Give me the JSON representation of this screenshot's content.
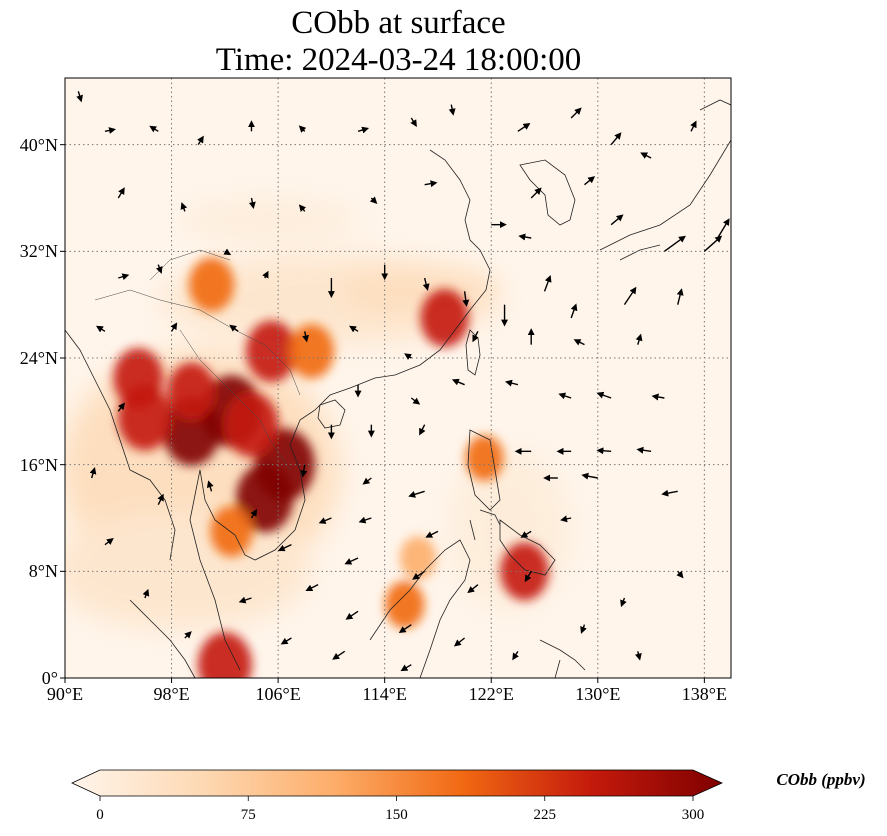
{
  "title": {
    "line1": "CObb at surface",
    "line2": "Time: 2024-03-24 18:00:00"
  },
  "map": {
    "lon_range": [
      90,
      140
    ],
    "lat_range": [
      0,
      45
    ],
    "lat_ticks": [
      {
        "value": 0,
        "label": "0°"
      },
      {
        "value": 8,
        "label": "8°N"
      },
      {
        "value": 16,
        "label": "16°N"
      },
      {
        "value": 24,
        "label": "24°N"
      },
      {
        "value": 32,
        "label": "32°N"
      },
      {
        "value": 40,
        "label": "40°N"
      }
    ],
    "lon_ticks": [
      {
        "value": 90,
        "label": "90°E"
      },
      {
        "value": 98,
        "label": "98°E"
      },
      {
        "value": 106,
        "label": "106°E"
      },
      {
        "value": 114,
        "label": "114°E"
      },
      {
        "value": 122,
        "label": "122°E"
      },
      {
        "value": 130,
        "label": "130°E"
      },
      {
        "value": 138,
        "label": "138°E"
      }
    ],
    "gridlines": "dotted",
    "background_color": "#fff5eb"
  },
  "colorbar": {
    "label": "CObb (ppbv)",
    "min": 0,
    "max": 300,
    "ticks": [
      "0",
      "75",
      "150",
      "225",
      "300"
    ],
    "colormap": "OrRd",
    "colors": [
      "#fff5eb",
      "#fdd9b4",
      "#fdae6b",
      "#f16913",
      "#c41a0c",
      "#7f0000"
    ]
  },
  "hotspots": [
    {
      "lon": 102.5,
      "lat": 20.0,
      "value": 300
    },
    {
      "lon": 106.5,
      "lat": 16.0,
      "value": 300
    },
    {
      "lon": 105.0,
      "lat": 13.5,
      "value": 280
    },
    {
      "lon": 99.5,
      "lat": 18.5,
      "value": 280
    },
    {
      "lon": 96.0,
      "lat": 19.5,
      "value": 260
    },
    {
      "lon": 104.0,
      "lat": 19.0,
      "value": 260
    },
    {
      "lon": 95.5,
      "lat": 22.5,
      "value": 230
    },
    {
      "lon": 105.5,
      "lat": 24.5,
      "value": 240
    },
    {
      "lon": 99.5,
      "lat": 21.5,
      "value": 220
    },
    {
      "lon": 108.5,
      "lat": 24.5,
      "value": 200
    },
    {
      "lon": 101.0,
      "lat": 29.5,
      "value": 200
    },
    {
      "lon": 118.5,
      "lat": 27.0,
      "value": 220
    },
    {
      "lon": 102.0,
      "lat": 1.0,
      "value": 260
    },
    {
      "lon": 121.5,
      "lat": 16.5,
      "value": 150
    },
    {
      "lon": 124.5,
      "lat": 8.0,
      "value": 220
    },
    {
      "lon": 115.5,
      "lat": 5.5,
      "value": 160
    },
    {
      "lon": 102.5,
      "lat": 11.0,
      "value": 180
    },
    {
      "lon": 116.5,
      "lat": 9.0,
      "value": 140
    }
  ],
  "winds": [
    {
      "lon": 91,
      "lat": 44,
      "u": 0.3,
      "v": -1
    },
    {
      "lon": 93,
      "lat": 41,
      "u": 1,
      "v": 0.2
    },
    {
      "lon": 97,
      "lat": 41,
      "u": -0.8,
      "v": 0.5
    },
    {
      "lon": 100,
      "lat": 40,
      "u": 0.5,
      "v": 0.8
    },
    {
      "lon": 104,
      "lat": 41,
      "u": 0,
      "v": 1
    },
    {
      "lon": 108,
      "lat": 41,
      "u": -0.5,
      "v": 0.5
    },
    {
      "lon": 112,
      "lat": 41,
      "u": 1,
      "v": 0.3
    },
    {
      "lon": 116,
      "lat": 42,
      "u": 0.5,
      "v": -0.8
    },
    {
      "lon": 119,
      "lat": 43,
      "u": 0.2,
      "v": -1
    },
    {
      "lon": 124,
      "lat": 41,
      "u": 1.2,
      "v": 0.8
    },
    {
      "lon": 128,
      "lat": 42,
      "u": 1,
      "v": 1
    },
    {
      "lon": 131,
      "lat": 40,
      "u": 1,
      "v": 1.2
    },
    {
      "lon": 134,
      "lat": 39,
      "u": -1,
      "v": 0.5
    },
    {
      "lon": 137,
      "lat": 41,
      "u": 0.5,
      "v": 1
    },
    {
      "lon": 94,
      "lat": 36,
      "u": 0.6,
      "v": 1
    },
    {
      "lon": 99,
      "lat": 35,
      "u": -0.3,
      "v": 0.8
    },
    {
      "lon": 104,
      "lat": 36,
      "u": 0.2,
      "v": -1
    },
    {
      "lon": 108,
      "lat": 35,
      "u": -0.5,
      "v": 0.6
    },
    {
      "lon": 113,
      "lat": 36,
      "u": 0.5,
      "v": -0.5
    },
    {
      "lon": 117,
      "lat": 37,
      "u": 1.2,
      "v": 0.2
    },
    {
      "lon": 125,
      "lat": 36,
      "u": 1,
      "v": 1
    },
    {
      "lon": 129,
      "lat": 37,
      "u": 1,
      "v": 0.8
    },
    {
      "lon": 122,
      "lat": 34,
      "u": 1.5,
      "v": 0
    },
    {
      "lon": 125,
      "lat": 33,
      "u": -1.2,
      "v": 0.2
    },
    {
      "lon": 131,
      "lat": 34,
      "u": 1.2,
      "v": 1
    },
    {
      "lon": 135,
      "lat": 32,
      "u": 2.2,
      "v": 1.6
    },
    {
      "lon": 138,
      "lat": 32,
      "u": 1.8,
      "v": 1.6
    },
    {
      "lon": 139,
      "lat": 33,
      "u": 1.2,
      "v": 2
    },
    {
      "lon": 94,
      "lat": 30,
      "u": 1,
      "v": 0.3
    },
    {
      "lon": 97,
      "lat": 31,
      "u": 0.3,
      "v": -0.8
    },
    {
      "lon": 102,
      "lat": 32,
      "u": 0.5,
      "v": -0.3
    },
    {
      "lon": 105,
      "lat": 30,
      "u": 0.3,
      "v": 0.6
    },
    {
      "lon": 110,
      "lat": 30,
      "u": 0,
      "v": -2
    },
    {
      "lon": 114,
      "lat": 31,
      "u": 0,
      "v": -1.5
    },
    {
      "lon": 117,
      "lat": 30,
      "u": 0.3,
      "v": -1.2
    },
    {
      "lon": 120,
      "lat": 29,
      "u": 0.2,
      "v": -1.5
    },
    {
      "lon": 123,
      "lat": 28,
      "u": 0,
      "v": -2.2
    },
    {
      "lon": 126,
      "lat": 29,
      "u": 0.6,
      "v": 1.6
    },
    {
      "lon": 128,
      "lat": 27,
      "u": 0.5,
      "v": 1.4
    },
    {
      "lon": 132,
      "lat": 28,
      "u": 1.2,
      "v": 1.8
    },
    {
      "lon": 136,
      "lat": 28,
      "u": 0.4,
      "v": 1.6
    },
    {
      "lon": 93,
      "lat": 26,
      "u": -0.8,
      "v": 0.5
    },
    {
      "lon": 98,
      "lat": 26,
      "u": 0.5,
      "v": 0.8
    },
    {
      "lon": 103,
      "lat": 26,
      "u": -0.8,
      "v": 0.6
    },
    {
      "lon": 108,
      "lat": 26,
      "u": 0.2,
      "v": -1
    },
    {
      "lon": 112,
      "lat": 26,
      "u": -0.8,
      "v": 0.5
    },
    {
      "lon": 116,
      "lat": 24,
      "u": -0.6,
      "v": 0.4
    },
    {
      "lon": 121,
      "lat": 26,
      "u": -0.5,
      "v": -1
    },
    {
      "lon": 125,
      "lat": 25,
      "u": 0,
      "v": 1.6
    },
    {
      "lon": 129,
      "lat": 25,
      "u": -1,
      "v": 0.5
    },
    {
      "lon": 133,
      "lat": 25,
      "u": 0.3,
      "v": 1
    },
    {
      "lon": 112,
      "lat": 22,
      "u": 0,
      "v": -1.2
    },
    {
      "lon": 116,
      "lat": 21,
      "u": 0.8,
      "v": -0.6
    },
    {
      "lon": 120,
      "lat": 22,
      "u": -1.2,
      "v": 0.5
    },
    {
      "lon": 124,
      "lat": 22,
      "u": -1.2,
      "v": 0.3
    },
    {
      "lon": 128,
      "lat": 21,
      "u": -1.2,
      "v": 0.4
    },
    {
      "lon": 131,
      "lat": 21,
      "u": -1.4,
      "v": 0.5
    },
    {
      "lon": 135,
      "lat": 21,
      "u": -1.2,
      "v": 0.2
    },
    {
      "lon": 113,
      "lat": 19,
      "u": 0,
      "v": -1.2
    },
    {
      "lon": 117,
      "lat": 19,
      "u": -0.5,
      "v": -1
    },
    {
      "lon": 125,
      "lat": 17,
      "u": -1.6,
      "v": 0
    },
    {
      "lon": 128,
      "lat": 17,
      "u": -1.4,
      "v": 0
    },
    {
      "lon": 131,
      "lat": 17,
      "u": -1.4,
      "v": 0.1
    },
    {
      "lon": 134,
      "lat": 17,
      "u": -1.4,
      "v": 0.2
    },
    {
      "lon": 113,
      "lat": 15,
      "u": -0.8,
      "v": -0.6
    },
    {
      "lon": 117,
      "lat": 14,
      "u": -1.6,
      "v": -0.5
    },
    {
      "lon": 127,
      "lat": 15,
      "u": -1.4,
      "v": 0
    },
    {
      "lon": 130,
      "lat": 15,
      "u": -1.6,
      "v": 0.3
    },
    {
      "lon": 136,
      "lat": 14,
      "u": -1.6,
      "v": -0.3
    },
    {
      "lon": 110,
      "lat": 12,
      "u": -1.2,
      "v": -0.5
    },
    {
      "lon": 113,
      "lat": 12,
      "u": -1.2,
      "v": -0.4
    },
    {
      "lon": 118,
      "lat": 11,
      "u": -1.2,
      "v": -0.6
    },
    {
      "lon": 125,
      "lat": 11,
      "u": -1,
      "v": -0.6
    },
    {
      "lon": 128,
      "lat": 12,
      "u": -1,
      "v": -0.2
    },
    {
      "lon": 107,
      "lat": 10,
      "u": -1.3,
      "v": -0.6
    },
    {
      "lon": 112,
      "lat": 9,
      "u": -1.3,
      "v": -0.6
    },
    {
      "lon": 117,
      "lat": 8,
      "u": -1.2,
      "v": -0.8
    },
    {
      "lon": 121,
      "lat": 7,
      "u": -1,
      "v": -0.8
    },
    {
      "lon": 125,
      "lat": 8,
      "u": -0.6,
      "v": -1
    },
    {
      "lon": 109,
      "lat": 7,
      "u": -1.2,
      "v": -0.6
    },
    {
      "lon": 112,
      "lat": 5,
      "u": -1.2,
      "v": -0.8
    },
    {
      "lon": 116,
      "lat": 4,
      "u": -1.2,
      "v": -0.8
    },
    {
      "lon": 120,
      "lat": 3,
      "u": -1,
      "v": -0.8
    },
    {
      "lon": 104,
      "lat": 6,
      "u": -1.2,
      "v": -0.4
    },
    {
      "lon": 107,
      "lat": 3,
      "u": -1,
      "v": -0.6
    },
    {
      "lon": 111,
      "lat": 2,
      "u": -1.2,
      "v": -0.8
    },
    {
      "lon": 116,
      "lat": 1,
      "u": -1,
      "v": -0.6
    },
    {
      "lon": 94,
      "lat": 20,
      "u": 0.6,
      "v": 0.8
    },
    {
      "lon": 92,
      "lat": 15,
      "u": 0.3,
      "v": 1
    },
    {
      "lon": 93,
      "lat": 10,
      "u": 0.8,
      "v": 0.6
    },
    {
      "lon": 96,
      "lat": 6,
      "u": 0.3,
      "v": 0.8
    },
    {
      "lon": 99,
      "lat": 3,
      "u": 0.6,
      "v": 0.6
    },
    {
      "lon": 97,
      "lat": 13,
      "u": 0.5,
      "v": 1
    },
    {
      "lon": 101,
      "lat": 14,
      "u": -0.3,
      "v": 1
    },
    {
      "lon": 104,
      "lat": 12,
      "u": 0.5,
      "v": 0.8
    },
    {
      "lon": 108,
      "lat": 16,
      "u": -0.2,
      "v": -1.2
    },
    {
      "lon": 110,
      "lat": 19,
      "u": 0,
      "v": -1.4
    },
    {
      "lon": 132,
      "lat": 6,
      "u": -0.3,
      "v": -0.8
    },
    {
      "lon": 136,
      "lat": 8,
      "u": 0.5,
      "v": -0.6
    },
    {
      "lon": 129,
      "lat": 4,
      "u": -0.3,
      "v": -0.8
    },
    {
      "lon": 124,
      "lat": 2,
      "u": -0.5,
      "v": -0.8
    },
    {
      "lon": 133,
      "lat": 2,
      "u": 0.2,
      "v": -0.8
    }
  ]
}
